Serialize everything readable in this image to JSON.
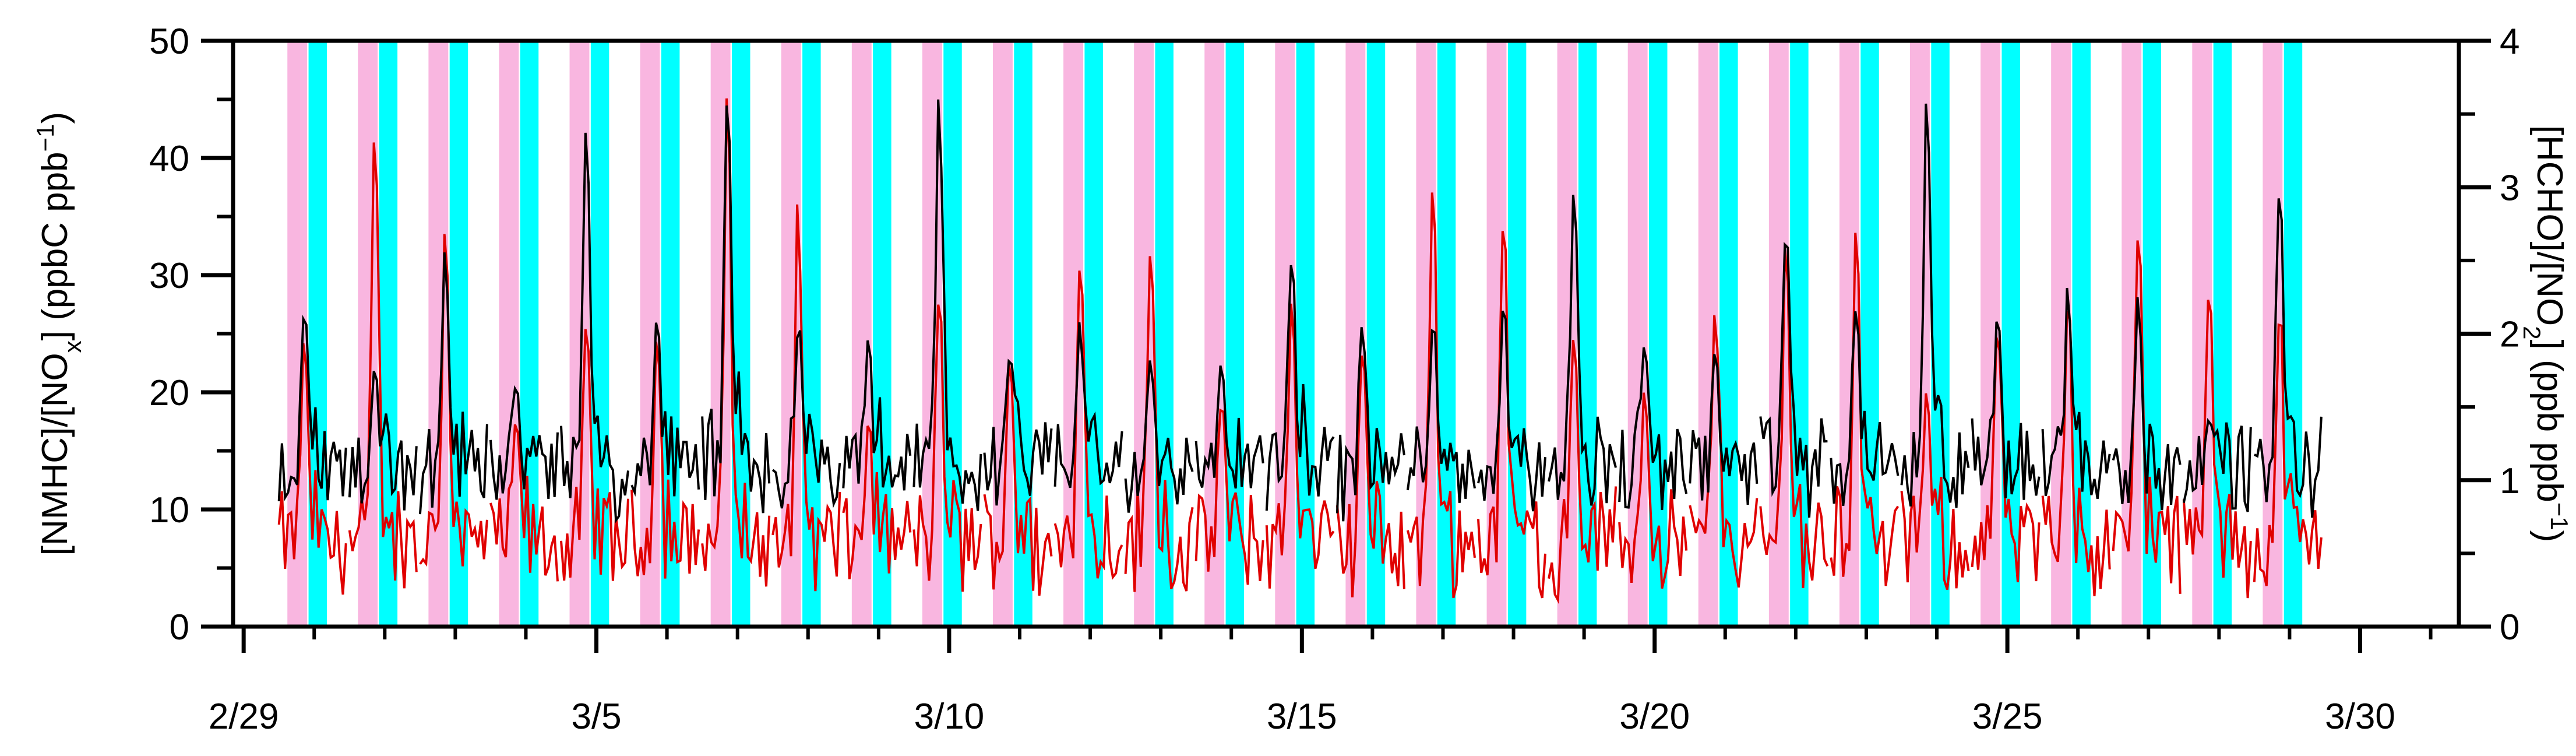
{
  "chart_data": {
    "type": "line",
    "x_axis": {
      "min_day": -0.15,
      "max_day": 31.4,
      "ticks": [
        {
          "day": 0,
          "label": "2/29"
        },
        {
          "day": 5,
          "label": "3/5"
        },
        {
          "day": 10,
          "label": "3/10"
        },
        {
          "day": 15,
          "label": "3/15"
        },
        {
          "day": 20,
          "label": "3/20"
        },
        {
          "day": 25,
          "label": "3/25"
        },
        {
          "day": 30,
          "label": "3/30"
        }
      ],
      "minor_tick_step": 1
    },
    "y_left": {
      "label_html": "[NMHC]/[NO<sub>x</sub>] (ppbC ppb<sup>−1</sup>)",
      "label_parts": [
        "[NMHC]/[NO",
        "x",
        "] (ppbC ppb",
        "−1",
        ")"
      ],
      "min": 0,
      "max": 50,
      "ticks": [
        "0",
        "10",
        "20",
        "30",
        "40",
        "50"
      ]
    },
    "y_right": {
      "label_parts": [
        "[HCHO]/[NO",
        "2",
        "] (ppb ppb",
        "−1",
        ")"
      ],
      "min": 0,
      "max": 4,
      "ticks": [
        "0",
        "1",
        "2",
        "3",
        "4"
      ]
    },
    "shading": {
      "pink_color": "#F9B6E0",
      "cyan_color": "#00FFFF",
      "pink_start": 0.62,
      "pink_end": 0.9,
      "cyan_start": 0.92,
      "cyan_end": 1.18
    },
    "series": [
      {
        "axis": "left",
        "color": "#000000",
        "daily_peaks": [
          27,
          22,
          32,
          21,
          42,
          26,
          45,
          26,
          24,
          46,
          24,
          26,
          23,
          23,
          33,
          27,
          26,
          28,
          37,
          25,
          23,
          35,
          28,
          46,
          26,
          29,
          28,
          18,
          38
        ]
      },
      {
        "axis": "right",
        "color": "#E00000",
        "daily_peaks": [
          1.95,
          3.45,
          2.75,
          1.4,
          2.1,
          2.1,
          3.62,
          2.9,
          1.4,
          2.25,
          1.95,
          2.65,
          2.6,
          1.55,
          2.3,
          2.0,
          3.2,
          2.82,
          2.05,
          1.6,
          2.25,
          2.65,
          2.83,
          1.6,
          2.1,
          2.35,
          2.8,
          2.4,
          2.2
        ]
      }
    ]
  }
}
